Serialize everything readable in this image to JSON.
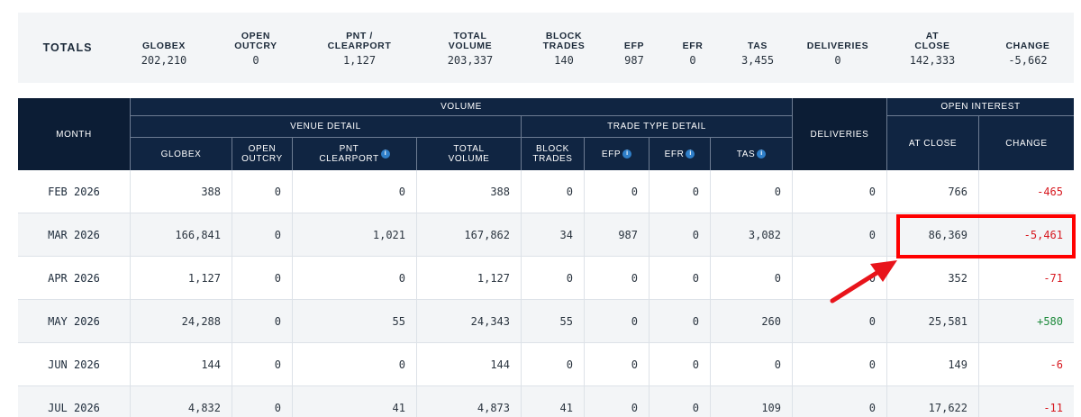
{
  "totals": {
    "title": "TOTALS",
    "columns": [
      {
        "label": "GLOBEX",
        "value": "202,210"
      },
      {
        "label": "OPEN\nOUTCRY",
        "value": "0"
      },
      {
        "label": "PNT /\nCLEARPORT",
        "value": "1,127"
      },
      {
        "label": "TOTAL\nVOLUME",
        "value": "203,337"
      },
      {
        "label": "BLOCK\nTRADES",
        "value": "140"
      },
      {
        "label": "EFP",
        "value": "987"
      },
      {
        "label": "EFR",
        "value": "0"
      },
      {
        "label": "TAS",
        "value": "3,455"
      },
      {
        "label": "DELIVERIES",
        "value": "0"
      },
      {
        "label": "AT\nCLOSE",
        "value": "142,333"
      },
      {
        "label": "CHANGE",
        "value": "-5,662"
      }
    ]
  },
  "table": {
    "month_header": "MONTH",
    "volume_header": "VOLUME",
    "venue_detail_header": "VENUE DETAIL",
    "trade_type_detail_header": "TRADE TYPE DETAIL",
    "deliveries_header": "DELIVERIES",
    "open_interest_header": "OPEN INTEREST",
    "sub_headers": {
      "globex": "GLOBEX",
      "open_outcry": "OPEN\nOUTCRY",
      "pnt_clearport": "PNT\nCLEARPORT",
      "total_volume": "TOTAL\nVOLUME",
      "block_trades": "BLOCK\nTRADES",
      "efp": "EFP",
      "efr": "EFR",
      "tas": "TAS",
      "at_close": "AT CLOSE",
      "change": "CHANGE"
    },
    "info_glyph": "i",
    "rows": [
      {
        "month": "FEB 2026",
        "globex": "388",
        "open_outcry": "0",
        "pnt_clearport": "0",
        "total_volume": "388",
        "block_trades": "0",
        "efp": "0",
        "efr": "0",
        "tas": "0",
        "deliveries": "0",
        "at_close": "766",
        "change": "-465"
      },
      {
        "month": "MAR 2026",
        "globex": "166,841",
        "open_outcry": "0",
        "pnt_clearport": "1,021",
        "total_volume": "167,862",
        "block_trades": "34",
        "efp": "987",
        "efr": "0",
        "tas": "3,082",
        "deliveries": "0",
        "at_close": "86,369",
        "change": "-5,461"
      },
      {
        "month": "APR 2026",
        "globex": "1,127",
        "open_outcry": "0",
        "pnt_clearport": "0",
        "total_volume": "1,127",
        "block_trades": "0",
        "efp": "0",
        "efr": "0",
        "tas": "0",
        "deliveries": "0",
        "at_close": "352",
        "change": "-71"
      },
      {
        "month": "MAY 2026",
        "globex": "24,288",
        "open_outcry": "0",
        "pnt_clearport": "55",
        "total_volume": "24,343",
        "block_trades": "55",
        "efp": "0",
        "efr": "0",
        "tas": "260",
        "deliveries": "0",
        "at_close": "25,581",
        "change": "+580"
      },
      {
        "month": "JUN 2026",
        "globex": "144",
        "open_outcry": "0",
        "pnt_clearport": "0",
        "total_volume": "144",
        "block_trades": "0",
        "efp": "0",
        "efr": "0",
        "tas": "0",
        "deliveries": "0",
        "at_close": "149",
        "change": "-6"
      },
      {
        "month": "JUL 2026",
        "globex": "4,832",
        "open_outcry": "0",
        "pnt_clearport": "41",
        "total_volume": "4,873",
        "block_trades": "41",
        "efp": "0",
        "efr": "0",
        "tas": "109",
        "deliveries": "0",
        "at_close": "17,622",
        "change": "-11"
      }
    ]
  },
  "colors": {
    "header_bg": "#102542",
    "negative": "#d71920",
    "positive": "#1e8a3c",
    "annotation": "#ff0000"
  }
}
